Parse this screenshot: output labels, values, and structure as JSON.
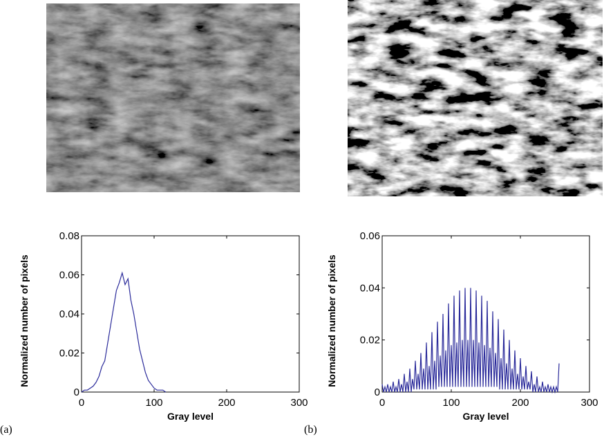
{
  "chart_data": [
    {
      "type": "line",
      "panel_label": "(a)",
      "xlabel": "Gray level",
      "ylabel": "Normalized number of pixels",
      "xlim": [
        0,
        300
      ],
      "ylim": [
        0,
        0.08
      ],
      "xticks": [
        0,
        100,
        200,
        300
      ],
      "yticks": [
        0,
        0.02,
        0.04,
        0.06,
        0.08
      ],
      "color": "#2a2a9a",
      "x": [
        0,
        4,
        8,
        12,
        16,
        20,
        24,
        28,
        32,
        36,
        40,
        44,
        48,
        52,
        56,
        60,
        64,
        68,
        72,
        76,
        80,
        84,
        88,
        92,
        96,
        100,
        104,
        108,
        112,
        116
      ],
      "values": [
        0,
        0.001,
        0.001,
        0.002,
        0.003,
        0.005,
        0.008,
        0.013,
        0.016,
        0.025,
        0.034,
        0.043,
        0.052,
        0.056,
        0.061,
        0.055,
        0.058,
        0.047,
        0.04,
        0.031,
        0.022,
        0.016,
        0.01,
        0.006,
        0.004,
        0.002,
        0.001,
        0.001,
        0.001,
        0
      ]
    },
    {
      "type": "line",
      "panel_label": "(b)",
      "xlabel": "Gray level",
      "ylabel": "Normalized number of pixels",
      "xlim": [
        0,
        300
      ],
      "ylim": [
        0,
        0.06
      ],
      "xticks": [
        0,
        100,
        200,
        300
      ],
      "yticks": [
        0,
        0.02,
        0.04,
        0.06
      ],
      "color": "#2a2a9a",
      "x": [
        0,
        2,
        4,
        6,
        8,
        10,
        12,
        14,
        16,
        18,
        20,
        22,
        24,
        26,
        28,
        30,
        32,
        34,
        36,
        38,
        40,
        42,
        44,
        46,
        48,
        50,
        52,
        54,
        56,
        58,
        60,
        62,
        64,
        66,
        68,
        70,
        72,
        74,
        76,
        78,
        80,
        82,
        84,
        86,
        88,
        90,
        92,
        94,
        96,
        98,
        100,
        102,
        104,
        106,
        108,
        110,
        112,
        114,
        116,
        118,
        120,
        122,
        124,
        126,
        128,
        130,
        132,
        134,
        136,
        138,
        140,
        142,
        144,
        146,
        148,
        150,
        152,
        154,
        156,
        158,
        160,
        162,
        164,
        166,
        168,
        170,
        172,
        174,
        176,
        178,
        180,
        182,
        184,
        186,
        188,
        190,
        192,
        194,
        196,
        198,
        200,
        202,
        204,
        206,
        208,
        210,
        212,
        214,
        216,
        218,
        220,
        222,
        224,
        226,
        228,
        230,
        232,
        234,
        236,
        238,
        240,
        242,
        244,
        246,
        248,
        250,
        252,
        254,
        256
      ],
      "values": [
        0.003,
        0,
        0.002,
        0,
        0.003,
        0,
        0.002,
        0,
        0.004,
        0,
        0.002,
        0,
        0.005,
        0,
        0.003,
        0,
        0.007,
        0,
        0.004,
        0,
        0.009,
        0,
        0.005,
        0.001,
        0.012,
        0.001,
        0.007,
        0.001,
        0.015,
        0.001,
        0.009,
        0.001,
        0.019,
        0.001,
        0.01,
        0.001,
        0.023,
        0.001,
        0.012,
        0.001,
        0.027,
        0.002,
        0.014,
        0.002,
        0.03,
        0.002,
        0.016,
        0.002,
        0.034,
        0.002,
        0.018,
        0.002,
        0.037,
        0.002,
        0.019,
        0.002,
        0.039,
        0.002,
        0.02,
        0.002,
        0.04,
        0.002,
        0.02,
        0.002,
        0.04,
        0.002,
        0.02,
        0.002,
        0.039,
        0.002,
        0.019,
        0.002,
        0.037,
        0.002,
        0.018,
        0.002,
        0.035,
        0.002,
        0.017,
        0.002,
        0.031,
        0.002,
        0.015,
        0.002,
        0.028,
        0.001,
        0.013,
        0.001,
        0.024,
        0.001,
        0.011,
        0.001,
        0.02,
        0.001,
        0.009,
        0.001,
        0.016,
        0.001,
        0.007,
        0.001,
        0.013,
        0.001,
        0.006,
        0.001,
        0.01,
        0.001,
        0.004,
        0.001,
        0.008,
        0,
        0.003,
        0,
        0.006,
        0,
        0.002,
        0,
        0.004,
        0,
        0.002,
        0,
        0.003,
        0,
        0.002,
        0,
        0.002,
        0,
        0.002,
        0,
        0.011
      ]
    }
  ]
}
